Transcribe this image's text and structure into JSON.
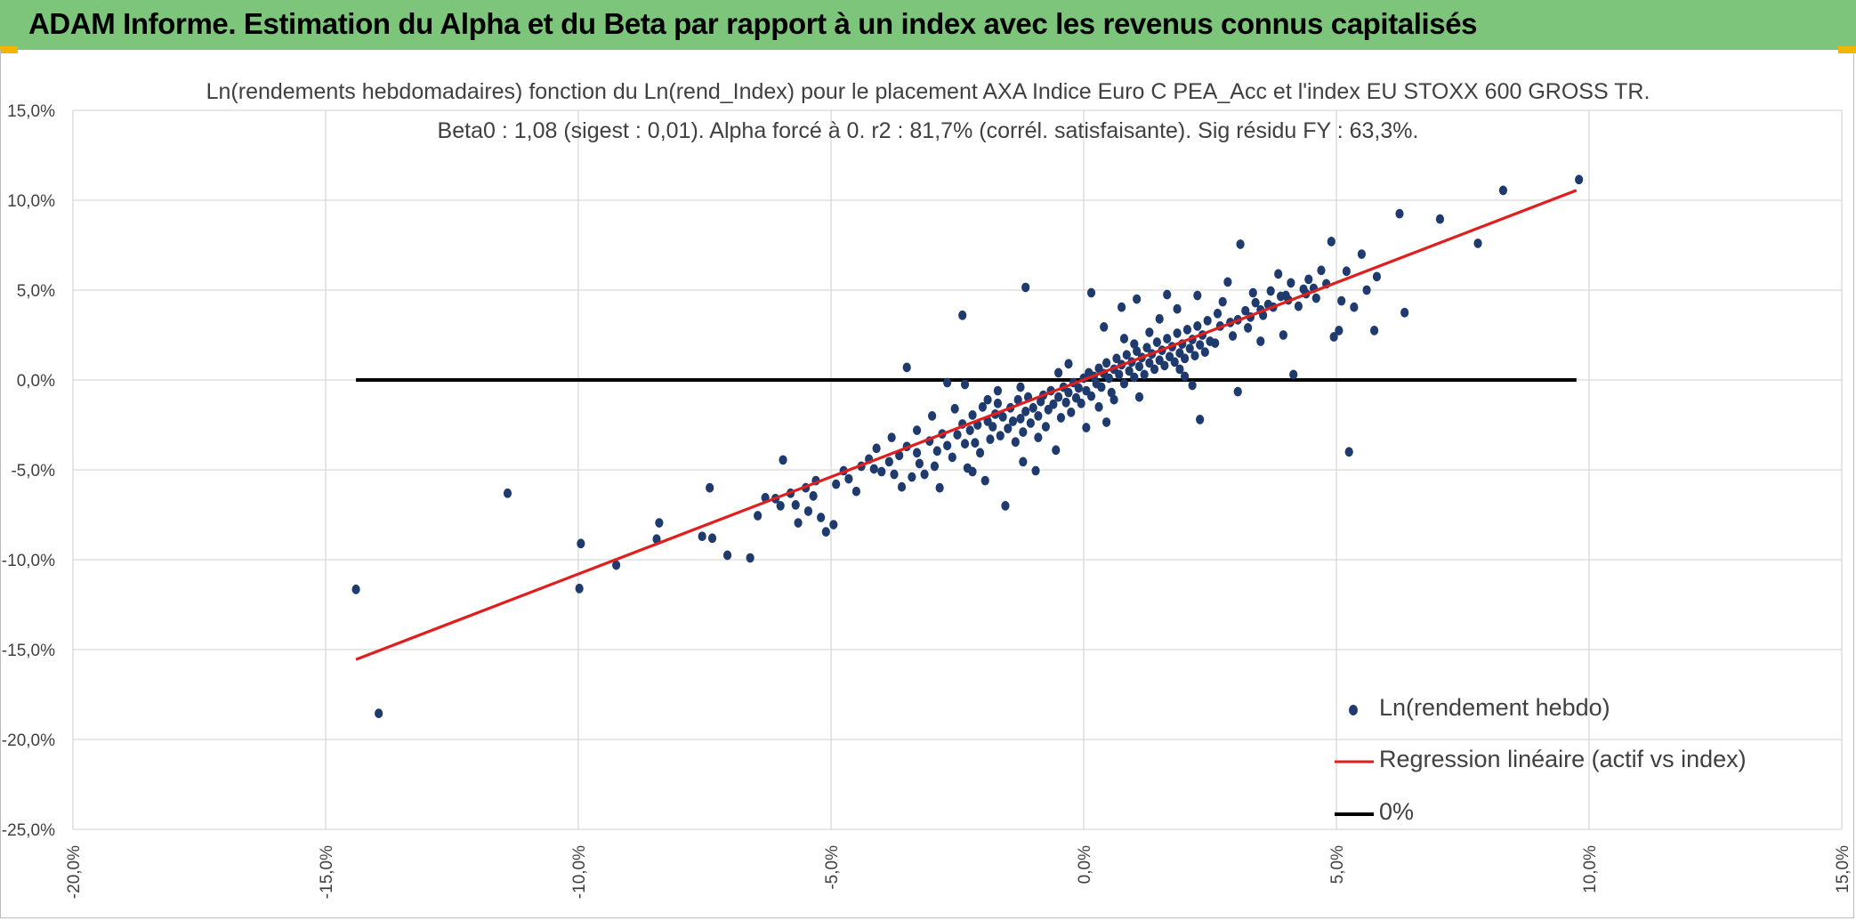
{
  "banner": {
    "title": "ADAM Informe. Estimation du Alpha et du Beta par rapport à un index avec les revenus connus capitalisés",
    "background": "#7dc57b",
    "corner_color": "#f2b600"
  },
  "chart_data": {
    "type": "scatter",
    "title": "Ln(rendements hebdomadaires) fonction du Ln(rend_Index) pour le placement AXA Indice Euro C PEA_Acc et l'index EU STOXX 600 GROSS TR.",
    "subtitle": "Beta0 : 1,08 (sigest : 0,01). Alpha forcé à 0. r2 : 81,7% (corrél. satisfaisante). Sig résidu FY : 63,3%.",
    "xlabel": "",
    "ylabel": "",
    "xlim": [
      -0.2,
      0.15
    ],
    "ylim": [
      -0.25,
      0.15
    ],
    "x_ticks": [
      -0.2,
      -0.15,
      -0.1,
      -0.05,
      0.0,
      0.05,
      0.1,
      0.15
    ],
    "x_tick_labels": [
      "-20,0%",
      "-15,0%",
      "-10,0%",
      "-5,0%",
      "0,0%",
      "5,0%",
      "10,0%",
      "15,0%"
    ],
    "y_ticks": [
      0.15,
      0.1,
      0.05,
      0.0,
      -0.05,
      -0.1,
      -0.15,
      -0.2,
      -0.25
    ],
    "y_tick_labels": [
      "15,0%",
      "10,0%",
      "5,0%",
      "0,0%",
      "-5,0%",
      "-10,0%",
      "-15,0%",
      "-20,0%",
      "-25,0%"
    ],
    "grid": true,
    "legend_position": "bottom-right",
    "series": [
      {
        "name": "Ln(rendement hebdo)",
        "kind": "scatter",
        "color": "#1f3b6e",
        "points": [
          [
            -0.144,
            -0.1165
          ],
          [
            -0.1395,
            -0.1855
          ],
          [
            -0.114,
            -0.063
          ],
          [
            -0.0995,
            -0.091
          ],
          [
            -0.0998,
            -0.116
          ],
          [
            -0.0925,
            -0.103
          ],
          [
            -0.084,
            -0.0795
          ],
          [
            -0.0845,
            -0.0885
          ],
          [
            -0.0755,
            -0.087
          ],
          [
            -0.074,
            -0.06
          ],
          [
            -0.0735,
            -0.088
          ],
          [
            -0.0705,
            -0.0975
          ],
          [
            -0.066,
            -0.099
          ],
          [
            -0.0645,
            -0.0755
          ],
          [
            -0.063,
            -0.0655
          ],
          [
            -0.06,
            -0.07
          ],
          [
            -0.0595,
            -0.0445
          ],
          [
            -0.057,
            -0.0695
          ],
          [
            -0.0565,
            -0.0795
          ],
          [
            -0.055,
            -0.06
          ],
          [
            -0.0545,
            -0.073
          ],
          [
            -0.0535,
            -0.0645
          ],
          [
            -0.052,
            -0.0765
          ],
          [
            -0.051,
            -0.0845
          ],
          [
            -0.0495,
            -0.0805
          ],
          [
            -0.049,
            -0.058
          ],
          [
            -0.0475,
            -0.0505
          ],
          [
            -0.045,
            -0.062
          ],
          [
            -0.0425,
            -0.044
          ],
          [
            -0.0415,
            -0.0495
          ],
          [
            -0.04,
            -0.051
          ],
          [
            -0.0385,
            -0.0455
          ],
          [
            -0.0375,
            -0.0525
          ],
          [
            -0.0365,
            -0.042
          ],
          [
            -0.036,
            -0.0595
          ],
          [
            -0.035,
            -0.037
          ],
          [
            -0.034,
            -0.054
          ],
          [
            -0.033,
            -0.0405
          ],
          [
            -0.0325,
            -0.0465
          ],
          [
            -0.0315,
            -0.0525
          ],
          [
            -0.0305,
            -0.034
          ],
          [
            -0.0295,
            -0.048
          ],
          [
            -0.029,
            -0.0395
          ],
          [
            -0.0285,
            -0.06
          ],
          [
            -0.028,
            -0.03
          ],
          [
            -0.027,
            -0.0365
          ],
          [
            -0.026,
            -0.043
          ],
          [
            -0.0255,
            -0.016
          ],
          [
            -0.025,
            -0.0305
          ],
          [
            -0.024,
            -0.0245
          ],
          [
            -0.0235,
            -0.0355
          ],
          [
            -0.023,
            -0.049
          ],
          [
            -0.0225,
            -0.028
          ],
          [
            -0.022,
            -0.0195
          ],
          [
            -0.0215,
            -0.035
          ],
          [
            -0.021,
            -0.025
          ],
          [
            -0.0205,
            -0.0405
          ],
          [
            -0.02,
            -0.015
          ],
          [
            -0.0195,
            -0.056
          ],
          [
            -0.019,
            -0.023
          ],
          [
            -0.0185,
            -0.033
          ],
          [
            -0.018,
            -0.026
          ],
          [
            -0.0175,
            -0.019
          ],
          [
            -0.017,
            -0.013
          ],
          [
            -0.0165,
            -0.031
          ],
          [
            -0.016,
            -0.0205
          ],
          [
            -0.0155,
            -0.07
          ],
          [
            -0.015,
            -0.027
          ],
          [
            -0.0145,
            -0.0155
          ],
          [
            -0.014,
            -0.023
          ],
          [
            -0.0135,
            -0.0345
          ],
          [
            -0.013,
            -0.011
          ],
          [
            -0.0125,
            -0.0215
          ],
          [
            -0.012,
            -0.029
          ],
          [
            -0.0115,
            -0.0175
          ],
          [
            -0.011,
            -0.0095
          ],
          [
            -0.0105,
            -0.024
          ],
          [
            -0.01,
            -0.0155
          ],
          [
            -0.0095,
            -0.0505
          ],
          [
            -0.009,
            -0.02
          ],
          [
            -0.0085,
            -0.012
          ],
          [
            -0.008,
            -0.0085
          ],
          [
            -0.0075,
            -0.026
          ],
          [
            -0.007,
            -0.0165
          ],
          [
            -0.0065,
            -0.006
          ],
          [
            -0.006,
            -0.0135
          ],
          [
            -0.0055,
            -0.039
          ],
          [
            -0.005,
            -0.0095
          ],
          [
            -0.0045,
            -0.021
          ],
          [
            -0.004,
            -0.004
          ],
          [
            -0.0035,
            -0.0125
          ],
          [
            -0.003,
            -0.007
          ],
          [
            -0.0025,
            -0.018
          ],
          [
            -0.002,
            -0.0015
          ],
          [
            -0.0015,
            -0.01
          ],
          [
            -0.001,
            -0.0045
          ],
          [
            -0.0005,
            -0.013
          ],
          [
            0.0,
            0.001
          ],
          [
            0.0005,
            -0.006
          ],
          [
            0.001,
            0.004
          ],
          [
            0.0015,
            -0.009
          ],
          [
            0.002,
            0.002
          ],
          [
            0.0025,
            -0.002
          ],
          [
            0.003,
            0.0065
          ],
          [
            0.0035,
            -0.004
          ],
          [
            0.004,
            0.0035
          ],
          [
            0.0045,
            0.0095
          ],
          [
            0.005,
            0.001
          ],
          [
            0.0055,
            -0.007
          ],
          [
            0.006,
            0.006
          ],
          [
            0.0065,
            0.012
          ],
          [
            0.007,
            0.003
          ],
          [
            0.0075,
            0.0085
          ],
          [
            0.008,
            -0.002
          ],
          [
            0.0085,
            0.014
          ],
          [
            0.009,
            0.005
          ],
          [
            0.0095,
            0.01
          ],
          [
            0.01,
            0.0015
          ],
          [
            0.0105,
            0.016
          ],
          [
            0.011,
            0.0075
          ],
          [
            0.0115,
            0.0125
          ],
          [
            0.012,
            0.003
          ],
          [
            0.0125,
            0.018
          ],
          [
            0.013,
            0.0095
          ],
          [
            0.0135,
            0.0145
          ],
          [
            0.014,
            0.006
          ],
          [
            0.0145,
            0.021
          ],
          [
            0.015,
            0.011
          ],
          [
            0.0155,
            0.0165
          ],
          [
            0.016,
            0.008
          ],
          [
            0.0165,
            0.023
          ],
          [
            0.017,
            0.013
          ],
          [
            0.0175,
            0.0185
          ],
          [
            0.018,
            0.01
          ],
          [
            0.0185,
            0.026
          ],
          [
            0.019,
            0.015
          ],
          [
            0.0195,
            0.02
          ],
          [
            0.02,
            0.012
          ],
          [
            0.0205,
            0.028
          ],
          [
            0.021,
            0.0175
          ],
          [
            0.0215,
            0.0225
          ],
          [
            0.022,
            0.0135
          ],
          [
            0.0225,
            0.03
          ],
          [
            0.023,
            0.0195
          ],
          [
            0.0235,
            0.025
          ],
          [
            0.024,
            0.0155
          ],
          [
            0.0245,
            0.033
          ],
          [
            0.025,
            0.0215
          ],
          [
            -0.0235,
            -0.0025
          ],
          [
            -0.027,
            -0.0015
          ],
          [
            -0.0125,
            -0.004
          ],
          [
            -0.022,
            -0.051
          ],
          [
            -0.035,
            0.007
          ],
          [
            -0.024,
            0.036
          ],
          [
            -0.0115,
            0.0515
          ],
          [
            -0.009,
            -0.032
          ],
          [
            0.0005,
            -0.0265
          ],
          [
            0.0015,
            0.0485
          ],
          [
            0.004,
            0.0295
          ],
          [
            0.0045,
            -0.0235
          ],
          [
            0.0075,
            0.0405
          ],
          [
            0.011,
            -0.0095
          ],
          [
            0.0105,
            0.045
          ],
          [
            0.0165,
            0.0475
          ],
          [
            0.0185,
            0.0395
          ],
          [
            0.023,
            -0.022
          ],
          [
            0.0225,
            0.047
          ],
          [
            0.026,
            0.0205
          ],
          [
            0.0265,
            0.037
          ],
          [
            0.0275,
            0.0435
          ],
          [
            0.0285,
            0.0545
          ],
          [
            0.0295,
            0.0245
          ],
          [
            0.0305,
            0.0335
          ],
          [
            0.031,
            0.0755
          ],
          [
            0.032,
            0.0385
          ],
          [
            0.0325,
            0.029
          ],
          [
            0.0335,
            0.0485
          ],
          [
            0.034,
            0.043
          ],
          [
            0.035,
            0.0215
          ],
          [
            0.0355,
            0.036
          ],
          [
            0.037,
            0.0495
          ],
          [
            0.0375,
            0.0405
          ],
          [
            0.0385,
            0.059
          ],
          [
            0.039,
            0.0465
          ],
          [
            0.0395,
            0.025
          ],
          [
            0.0405,
            0.0445
          ],
          [
            0.041,
            0.054
          ],
          [
            0.0415,
            0.003
          ],
          [
            0.0425,
            0.041
          ],
          [
            0.0435,
            0.0505
          ],
          [
            0.0445,
            0.056
          ],
          [
            0.046,
            0.0455
          ],
          [
            0.047,
            0.061
          ],
          [
            0.048,
            0.0535
          ],
          [
            0.049,
            0.077
          ],
          [
            0.0495,
            0.024
          ],
          [
            0.0505,
            0.0275
          ],
          [
            0.051,
            0.044
          ],
          [
            0.052,
            0.0605
          ],
          [
            0.0525,
            -0.04
          ],
          [
            0.0535,
            0.0405
          ],
          [
            0.055,
            0.07
          ],
          [
            0.056,
            0.05
          ],
          [
            0.0575,
            0.0275
          ],
          [
            0.058,
            0.0575
          ],
          [
            0.0625,
            0.0925
          ],
          [
            0.0635,
            0.0375
          ],
          [
            0.0705,
            0.0895
          ],
          [
            0.078,
            0.076
          ],
          [
            0.083,
            0.1055
          ],
          [
            0.098,
            0.1115
          ],
          [
            0.0305,
            -0.0065
          ],
          [
            0.019,
            0.006
          ],
          [
            0.0215,
            -0.003
          ],
          [
            0.008,
            0.023
          ],
          [
            0.003,
            -0.015
          ],
          [
            -0.005,
            0.004
          ],
          [
            -0.003,
            0.009
          ],
          [
            0.013,
            0.0265
          ],
          [
            0.015,
            0.034
          ],
          [
            0.02,
            0.002
          ],
          [
            -0.017,
            -0.006
          ],
          [
            -0.012,
            -0.0455
          ],
          [
            -0.019,
            -0.011
          ],
          [
            0.006,
            -0.011
          ],
          [
            0.01,
            0.02
          ],
          [
            -0.03,
            -0.02
          ],
          [
            -0.033,
            -0.028
          ],
          [
            -0.038,
            -0.032
          ],
          [
            -0.041,
            -0.038
          ],
          [
            -0.044,
            -0.048
          ],
          [
            -0.0465,
            -0.055
          ],
          [
            -0.053,
            -0.056
          ],
          [
            -0.058,
            -0.063
          ],
          [
            -0.061,
            -0.066
          ],
          [
            0.027,
            0.03
          ],
          [
            0.029,
            0.032
          ],
          [
            0.033,
            0.035
          ],
          [
            0.035,
            0.039
          ],
          [
            0.0365,
            0.042
          ],
          [
            0.04,
            0.047
          ],
          [
            0.044,
            0.048
          ],
          [
            0.0455,
            0.051
          ]
        ]
      },
      {
        "name": "Regression linéaire (actif vs index)",
        "kind": "line",
        "color": "#e01e1e",
        "x": [
          -0.144,
          0.0975
        ],
        "y": [
          -0.1555,
          0.1055
        ]
      },
      {
        "name": "0%",
        "kind": "line",
        "color": "#000000",
        "x": [
          -0.144,
          0.0975
        ],
        "y": [
          0.0,
          0.0
        ]
      }
    ]
  }
}
